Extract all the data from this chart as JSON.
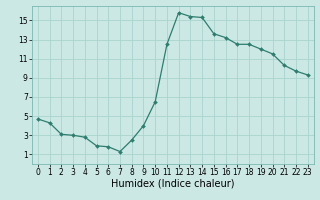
{
  "x": [
    0,
    1,
    2,
    3,
    4,
    5,
    6,
    7,
    8,
    9,
    10,
    11,
    12,
    13,
    14,
    15,
    16,
    17,
    18,
    19,
    20,
    21,
    22,
    23
  ],
  "y": [
    4.7,
    4.3,
    3.1,
    3.0,
    2.8,
    1.9,
    1.8,
    1.3,
    2.5,
    4.0,
    6.5,
    12.5,
    15.8,
    15.4,
    15.3,
    13.6,
    13.2,
    12.5,
    12.5,
    12.0,
    11.5,
    10.3,
    9.7,
    9.3
  ],
  "line_color": "#2e7d6e",
  "marker": "D",
  "marker_size": 2.0,
  "bg_color": "#cce8e4",
  "grid_color": "#aad4cf",
  "xlabel": "Humidex (Indice chaleur)",
  "xlim": [
    -0.5,
    23.5
  ],
  "ylim": [
    0,
    16.5
  ],
  "yticks": [
    1,
    3,
    5,
    7,
    9,
    11,
    13,
    15
  ],
  "xticks": [
    0,
    1,
    2,
    3,
    4,
    5,
    6,
    7,
    8,
    9,
    10,
    11,
    12,
    13,
    14,
    15,
    16,
    17,
    18,
    19,
    20,
    21,
    22,
    23
  ],
  "tick_fontsize": 5.5,
  "xlabel_fontsize": 7.0,
  "linewidth": 0.9
}
